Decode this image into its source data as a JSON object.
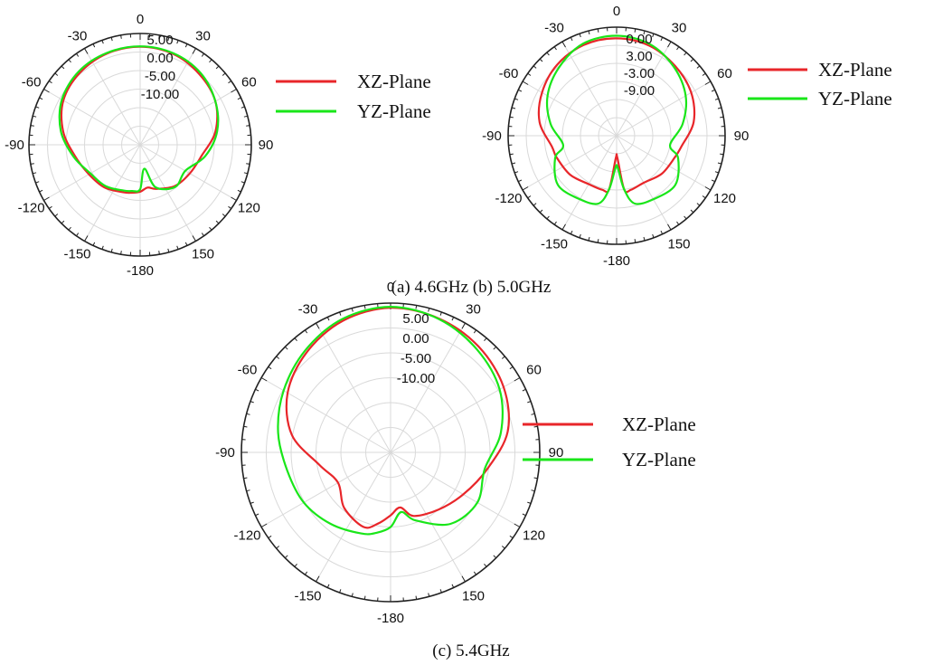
{
  "figure": {
    "captions": [
      "(a) 4.6GHz (b) 5.0GHz",
      "(c) 5.4GHz"
    ]
  },
  "chart_data": [
    {
      "type": "polar-line",
      "angle_ticks": [
        "0",
        "30",
        "60",
        "90",
        "120",
        "150",
        "-180",
        "-150",
        "-120",
        "-90",
        "-60",
        "-30"
      ],
      "radial_ticks": [
        "5.00",
        "0.00",
        "-5.00",
        "-10.00"
      ],
      "radial_values": [
        5,
        0,
        -5,
        -10
      ],
      "rlim": [
        -22,
        10
      ],
      "grid": true,
      "legend_position": "right",
      "theta": [
        0,
        20,
        40,
        60,
        80,
        100,
        120,
        140,
        160,
        170,
        180,
        190,
        200,
        220,
        240,
        260,
        280,
        300,
        320,
        340
      ],
      "series": [
        {
          "name": "XZ-Plane",
          "color": "#e8262a",
          "values": [
            6.2,
            5.8,
            4.5,
            3.0,
            0.0,
            -4.0,
            -5.5,
            -6.5,
            -8.5,
            -9.5,
            -8.5,
            -8.0,
            -7.5,
            -6.0,
            -5.0,
            -3.0,
            0.5,
            3.5,
            5.0,
            5.9
          ]
        },
        {
          "name": "YZ-Plane",
          "color": "#19e619",
          "values": [
            6.3,
            6.0,
            5.0,
            3.0,
            0.5,
            -3.0,
            -7.0,
            -6.2,
            -9.0,
            -15.0,
            -9.2,
            -8.5,
            -8.0,
            -6.5,
            -5.5,
            -2.5,
            1.2,
            4.0,
            5.5,
            6.1
          ]
        }
      ]
    },
    {
      "type": "polar-line",
      "angle_ticks": [
        "0",
        "30",
        "60",
        "90",
        "120",
        "150",
        "-180",
        "-150",
        "-120",
        "-90",
        "-60",
        "-30"
      ],
      "radial_ticks": [
        "0.00",
        "3.00",
        "-3.00",
        "-9.00"
      ],
      "radial_values": [
        0,
        3,
        -3,
        -9
      ],
      "rlim": [
        -22,
        12
      ],
      "grid": true,
      "legend_position": "right",
      "theta": [
        0,
        20,
        40,
        60,
        80,
        100,
        110,
        130,
        150,
        165,
        172,
        178,
        182,
        188,
        195,
        210,
        230,
        250,
        260,
        280,
        300,
        320,
        340
      ],
      "series": [
        {
          "name": "XZ-Plane",
          "color": "#e8262a",
          "values": [
            8.5,
            8.0,
            6.5,
            5.0,
            2.5,
            -1.5,
            -2.5,
            -3.5,
            -5.0,
            -4.5,
            -5.0,
            -15.0,
            -15.0,
            -5.0,
            -4.5,
            -4.5,
            -3.0,
            -2.0,
            -1.5,
            2.5,
            5.0,
            7.0,
            8.2
          ]
        },
        {
          "name": "YZ-Plane",
          "color": "#19e619",
          "values": [
            9.3,
            8.5,
            6.0,
            3.0,
            -1.0,
            -5.0,
            -1.5,
            2.0,
            1.0,
            0.0,
            -5.0,
            -12.0,
            -12.0,
            -5.0,
            0.0,
            1.0,
            2.0,
            -1.5,
            -5.0,
            -1.0,
            3.0,
            6.0,
            8.7
          ]
        }
      ]
    },
    {
      "type": "polar-line",
      "angle_ticks": [
        "0",
        "30",
        "60",
        "90",
        "120",
        "150",
        "-180",
        "-150",
        "-120",
        "-90",
        "-60",
        "-30"
      ],
      "radial_ticks": [
        "5.00",
        "0.00",
        "-5.00",
        "-10.00"
      ],
      "radial_values": [
        5,
        0,
        -5,
        -10
      ],
      "rlim": [
        -22,
        10
      ],
      "grid": true,
      "legend_position": "right",
      "theta": [
        0,
        20,
        40,
        60,
        80,
        100,
        120,
        140,
        160,
        170,
        180,
        190,
        200,
        220,
        240,
        260,
        280,
        300,
        320,
        340
      ],
      "series": [
        {
          "name": "XZ-Plane",
          "color": "#e8262a",
          "values": [
            9.0,
            8.5,
            7.5,
            6.0,
            3.5,
            -1.0,
            -4.0,
            -6.0,
            -7.5,
            -10.0,
            -8.5,
            -6.5,
            -5.0,
            -6.5,
            -9.0,
            -6.5,
            -0.5,
            3.5,
            6.0,
            8.0
          ]
        },
        {
          "name": "YZ-Plane",
          "color": "#19e619",
          "values": [
            9.2,
            8.4,
            6.8,
            5.0,
            2.0,
            -1.5,
            -0.5,
            -2.0,
            -6.5,
            -9.0,
            -6.0,
            -4.5,
            -3.5,
            -2.0,
            -0.5,
            0.5,
            2.5,
            4.5,
            6.5,
            8.4
          ]
        }
      ]
    }
  ]
}
